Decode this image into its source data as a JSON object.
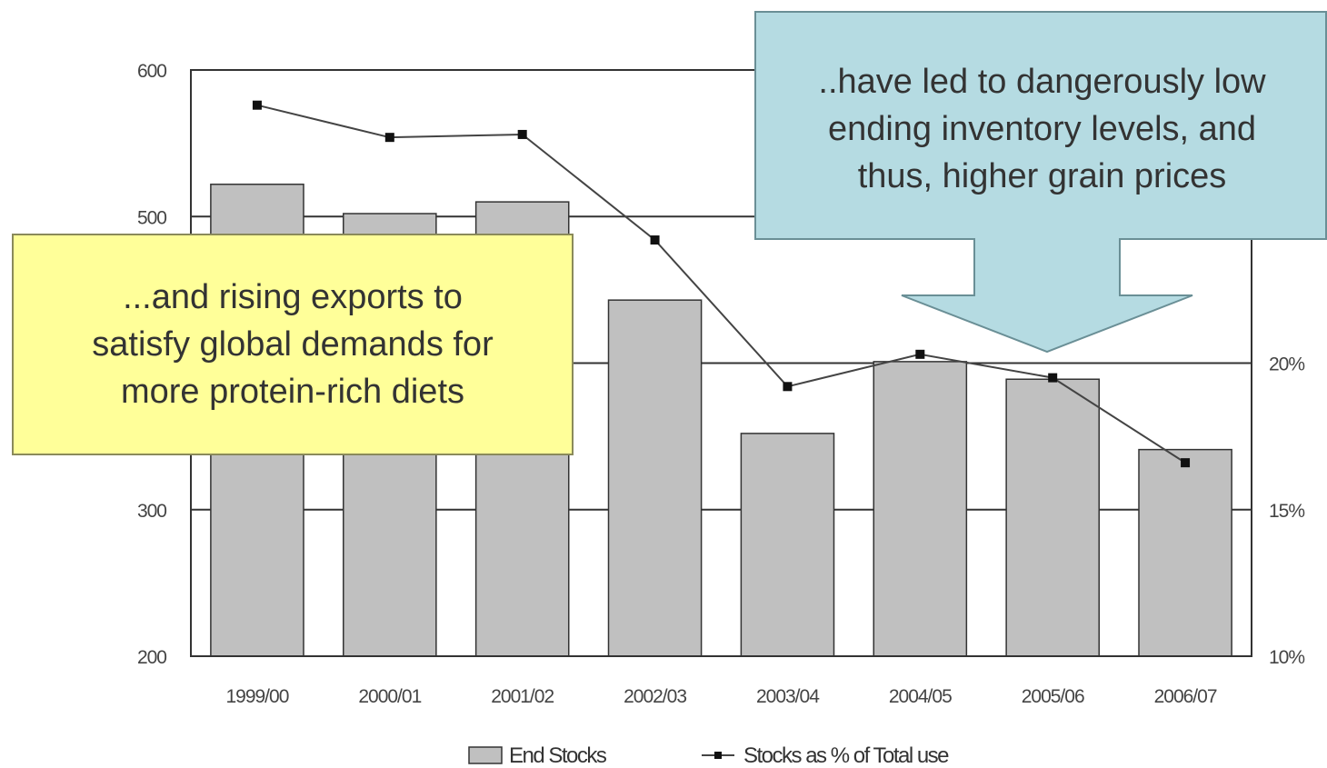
{
  "chart_data": {
    "type": "bar",
    "categories": [
      "1999/00",
      "2000/01",
      "2001/02",
      "2002/03",
      "2003/04",
      "2004/05",
      "2005/06",
      "2006/07"
    ],
    "series": [
      {
        "name": "End Stocks",
        "type": "bar",
        "axis": "left",
        "values": [
          522,
          502,
          510,
          443,
          352,
          401,
          389,
          341
        ]
      },
      {
        "name": "Stocks as % of Total use",
        "type": "line",
        "axis": "right",
        "values": [
          28.8,
          27.7,
          27.8,
          24.2,
          19.2,
          20.3,
          19.5,
          16.6
        ]
      }
    ],
    "y_left": {
      "ylim": [
        200,
        600
      ],
      "ticks": [
        "200",
        "300",
        "500",
        "600"
      ]
    },
    "y_right": {
      "ylim": [
        10,
        30
      ],
      "ticks": [
        "10%",
        "15%",
        "20%"
      ]
    },
    "grid": true,
    "legend_position": "bottom"
  },
  "annotations": {
    "left_callout": "...and rising exports to\nsatisfy global demands for\nmore protein-rich diets",
    "right_callout": "..have led to dangerously low\nending inventory levels, and\nthus, higher grain prices"
  },
  "colors": {
    "bar_fill": "#c0c0c0",
    "bar_stroke": "#333333",
    "line": "#444444",
    "marker": "#111111",
    "yellow_callout": "#ffff99",
    "blue_callout": "#b5dbe2"
  }
}
